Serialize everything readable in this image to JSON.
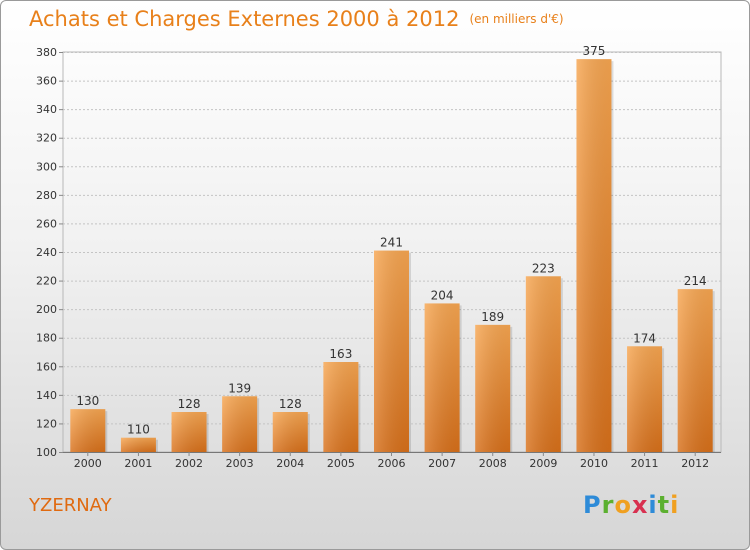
{
  "chart_data": {
    "type": "bar",
    "title": "Achats et Charges Externes 2000 à 2012",
    "subtitle": "(en milliers d'€)",
    "categories": [
      "2000",
      "2001",
      "2002",
      "2003",
      "2004",
      "2005",
      "2006",
      "2007",
      "2008",
      "2009",
      "2010",
      "2011",
      "2012"
    ],
    "values": [
      130,
      110,
      128,
      139,
      128,
      163,
      241,
      204,
      189,
      223,
      375,
      174,
      214
    ],
    "ylim": [
      100,
      380
    ],
    "yticks": [
      100,
      120,
      140,
      160,
      180,
      200,
      220,
      240,
      260,
      280,
      300,
      320,
      340,
      360,
      380
    ],
    "grid": true,
    "legend": "none",
    "bar_color": "#f0922e"
  },
  "footer": {
    "town": "YZERNAY",
    "logo": "Proxiti"
  }
}
